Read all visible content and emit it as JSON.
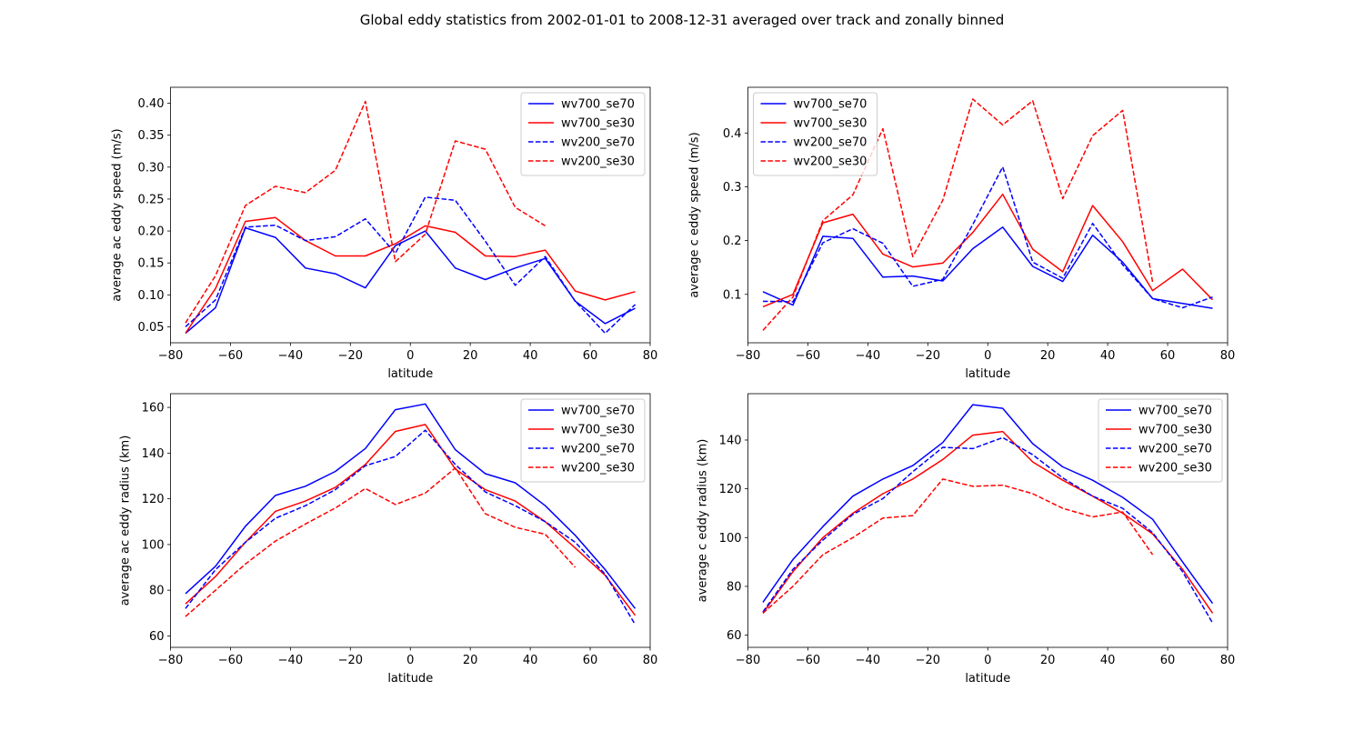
{
  "figure": {
    "suptitle": "Global eddy statistics from 2002-01-01 to 2008-12-31 averaged over track and zonally binned"
  },
  "chart_data": [
    {
      "type": "line",
      "title": "",
      "xlabel": "latitude",
      "ylabel": "average ac eddy speed (m/s)",
      "xlim": [
        -80,
        80
      ],
      "ylim": [
        0.025,
        0.425
      ],
      "xticks": [
        -80,
        -60,
        -40,
        -20,
        0,
        20,
        40,
        60,
        80
      ],
      "yticks": [
        0.05,
        0.1,
        0.15,
        0.2,
        0.25,
        0.3,
        0.35,
        0.4
      ],
      "ytick_decimals": 2,
      "grid": false,
      "legend_placement": "top-right",
      "series": [
        {
          "name": "wv700_se70",
          "color": "#0000ff",
          "dashed": false,
          "x": [
            -75,
            -65,
            -55,
            -45,
            -35,
            -25,
            -15,
            -5,
            5,
            15,
            25,
            35,
            45,
            55,
            65,
            75
          ],
          "y": [
            0.04,
            0.08,
            0.205,
            0.19,
            0.142,
            0.133,
            0.111,
            0.177,
            0.2,
            0.142,
            0.124,
            0.142,
            0.157,
            0.09,
            0.055,
            0.079
          ]
        },
        {
          "name": "wv700_se30",
          "color": "#ff0000",
          "dashed": false,
          "x": [
            -75,
            -65,
            -55,
            -45,
            -35,
            -25,
            -15,
            -5,
            5,
            15,
            25,
            35,
            45,
            55,
            65,
            75
          ],
          "y": [
            0.04,
            0.11,
            0.215,
            0.221,
            0.185,
            0.161,
            0.161,
            0.18,
            0.208,
            0.198,
            0.161,
            0.16,
            0.17,
            0.106,
            0.092,
            0.105
          ]
        },
        {
          "name": "wv200_se70",
          "color": "#0000ff",
          "dashed": true,
          "x": [
            -75,
            -65,
            -55,
            -45,
            -35,
            -25,
            -15,
            -5,
            5,
            15,
            25,
            35,
            45,
            55,
            65,
            75
          ],
          "y": [
            0.05,
            0.092,
            0.206,
            0.209,
            0.185,
            0.191,
            0.219,
            0.165,
            0.253,
            0.248,
            0.184,
            0.115,
            0.16,
            0.09,
            0.04,
            0.085
          ]
        },
        {
          "name": "wv200_se30",
          "color": "#ff0000",
          "dashed": true,
          "x": [
            -75,
            -65,
            -55,
            -45,
            -35,
            -25,
            -15,
            -5,
            5,
            15,
            25,
            35,
            45
          ],
          "y": [
            0.056,
            0.13,
            0.24,
            0.27,
            0.26,
            0.295,
            0.403,
            0.152,
            0.195,
            0.341,
            0.328,
            0.237,
            0.208
          ]
        }
      ]
    },
    {
      "type": "line",
      "title": "",
      "xlabel": "latitude",
      "ylabel": "average c eddy speed (m/s)",
      "xlim": [
        -80,
        80
      ],
      "ylim": [
        0.01,
        0.485
      ],
      "xticks": [
        -80,
        -60,
        -40,
        -20,
        0,
        20,
        40,
        60,
        80
      ],
      "yticks": [
        0.1,
        0.2,
        0.3,
        0.4
      ],
      "ytick_decimals": 1,
      "grid": false,
      "legend_placement": "top-left",
      "series": [
        {
          "name": "wv700_se70",
          "color": "#0000ff",
          "dashed": false,
          "x": [
            -75,
            -65,
            -55,
            -45,
            -35,
            -25,
            -15,
            -5,
            5,
            15,
            25,
            35,
            45,
            55,
            65,
            75
          ],
          "y": [
            0.105,
            0.08,
            0.208,
            0.204,
            0.132,
            0.134,
            0.125,
            0.185,
            0.225,
            0.152,
            0.124,
            0.21,
            0.16,
            0.092,
            0.083,
            0.074
          ]
        },
        {
          "name": "wv700_se30",
          "color": "#ff0000",
          "dashed": false,
          "x": [
            -75,
            -65,
            -55,
            -45,
            -35,
            -25,
            -15,
            -5,
            5,
            15,
            25,
            35,
            45,
            55,
            65,
            75
          ],
          "y": [
            0.077,
            0.1,
            0.233,
            0.249,
            0.175,
            0.151,
            0.158,
            0.215,
            0.286,
            0.184,
            0.142,
            0.265,
            0.198,
            0.107,
            0.147,
            0.09
          ]
        },
        {
          "name": "wv200_se70",
          "color": "#0000ff",
          "dashed": true,
          "x": [
            -75,
            -65,
            -55,
            -45,
            -35,
            -25,
            -15,
            -5,
            5,
            15,
            25,
            35,
            45,
            55,
            65,
            75
          ],
          "y": [
            0.087,
            0.086,
            0.196,
            0.222,
            0.195,
            0.115,
            0.128,
            0.23,
            0.337,
            0.16,
            0.13,
            0.232,
            0.155,
            0.092,
            0.075,
            0.095
          ]
        },
        {
          "name": "wv200_se30",
          "color": "#ff0000",
          "dashed": true,
          "x": [
            -75,
            -65,
            -55,
            -45,
            -35,
            -25,
            -15,
            -5,
            5,
            15,
            25,
            35,
            45,
            55
          ],
          "y": [
            0.033,
            0.095,
            0.237,
            0.285,
            0.408,
            0.17,
            0.275,
            0.463,
            0.415,
            0.46,
            0.278,
            0.395,
            0.442,
            0.122
          ]
        }
      ]
    },
    {
      "type": "line",
      "title": "",
      "xlabel": "latitude",
      "ylabel": "average ac eddy radius (km)",
      "xlim": [
        -80,
        80
      ],
      "ylim": [
        55,
        166
      ],
      "xticks": [
        -80,
        -60,
        -40,
        -20,
        0,
        20,
        40,
        60,
        80
      ],
      "yticks": [
        60,
        80,
        100,
        120,
        140,
        160
      ],
      "ytick_decimals": 0,
      "grid": false,
      "legend_placement": "top-right",
      "series": [
        {
          "name": "wv700_se70",
          "color": "#0000ff",
          "dashed": false,
          "x": [
            -75,
            -65,
            -55,
            -45,
            -35,
            -25,
            -15,
            -5,
            5,
            15,
            25,
            35,
            45,
            55,
            65,
            75
          ],
          "y": [
            78.5,
            90.5,
            108,
            121.5,
            125.5,
            132,
            142,
            159,
            161.5,
            141.5,
            131,
            127,
            117,
            104,
            89,
            72
          ]
        },
        {
          "name": "wv700_se30",
          "color": "#ff0000",
          "dashed": false,
          "x": [
            -75,
            -65,
            -55,
            -45,
            -35,
            -25,
            -15,
            -5,
            5,
            15,
            25,
            35,
            45,
            55,
            65,
            75
          ],
          "y": [
            74,
            86,
            101,
            114.5,
            119,
            125,
            135,
            149.5,
            152.5,
            133,
            124,
            119,
            110,
            98.5,
            86.5,
            69
          ]
        },
        {
          "name": "wv200_se70",
          "color": "#0000ff",
          "dashed": true,
          "x": [
            -75,
            -65,
            -55,
            -45,
            -35,
            -25,
            -15,
            -5,
            5,
            15,
            25,
            35,
            45,
            55,
            65,
            75
          ],
          "y": [
            72,
            89,
            101,
            111.5,
            117,
            124,
            134.5,
            138.5,
            150,
            135,
            123,
            117,
            110,
            101,
            87,
            65
          ]
        },
        {
          "name": "wv200_se30",
          "color": "#ff0000",
          "dashed": true,
          "x": [
            -75,
            -65,
            -55,
            -45,
            -35,
            -25,
            -15,
            -5,
            5,
            15,
            25,
            35,
            45,
            55
          ],
          "y": [
            68.5,
            80,
            91.5,
            101.5,
            109,
            116,
            124.5,
            117.5,
            122.5,
            133.5,
            113.5,
            107.5,
            104.5,
            90
          ]
        }
      ]
    },
    {
      "type": "line",
      "title": "",
      "xlabel": "latitude",
      "ylabel": "average c eddy radius (km)",
      "xlim": [
        -80,
        80
      ],
      "ylim": [
        55,
        159
      ],
      "xticks": [
        -80,
        -60,
        -40,
        -20,
        0,
        20,
        40,
        60,
        80
      ],
      "yticks": [
        60,
        80,
        100,
        120,
        140
      ],
      "ytick_decimals": 0,
      "grid": false,
      "legend_placement": "top-right",
      "series": [
        {
          "name": "wv700_se70",
          "color": "#0000ff",
          "dashed": false,
          "x": [
            -75,
            -65,
            -55,
            -45,
            -35,
            -25,
            -15,
            -5,
            5,
            15,
            25,
            35,
            45,
            55,
            65,
            75
          ],
          "y": [
            73.5,
            91,
            104.5,
            117,
            124,
            129.5,
            139,
            154.5,
            153,
            138.5,
            129,
            123.5,
            116.5,
            107.5,
            90,
            73
          ]
        },
        {
          "name": "wv700_se30",
          "color": "#ff0000",
          "dashed": false,
          "x": [
            -75,
            -65,
            -55,
            -45,
            -35,
            -25,
            -15,
            -5,
            5,
            15,
            25,
            35,
            45,
            55,
            65,
            75
          ],
          "y": [
            69,
            86,
            100,
            110,
            118,
            124,
            132,
            142,
            143.5,
            131,
            123.5,
            117,
            110,
            101.5,
            87,
            69
          ]
        },
        {
          "name": "wv200_se70",
          "color": "#0000ff",
          "dashed": true,
          "x": [
            -75,
            -65,
            -55,
            -45,
            -35,
            -25,
            -15,
            -5,
            5,
            15,
            25,
            35,
            45,
            55,
            65,
            75
          ],
          "y": [
            69.5,
            87,
            99,
            109.5,
            116,
            127,
            137,
            136.5,
            141,
            134,
            124.5,
            117,
            112,
            102,
            86,
            65
          ]
        },
        {
          "name": "wv200_se30",
          "color": "#ff0000",
          "dashed": true,
          "x": [
            -75,
            -65,
            -55,
            -45,
            -35,
            -25,
            -15,
            -5,
            5,
            15,
            25,
            35,
            45,
            55
          ],
          "y": [
            69,
            80,
            93,
            100,
            108,
            109,
            124,
            121,
            121.5,
            118,
            112,
            108.5,
            110.5,
            93
          ]
        }
      ]
    }
  ]
}
